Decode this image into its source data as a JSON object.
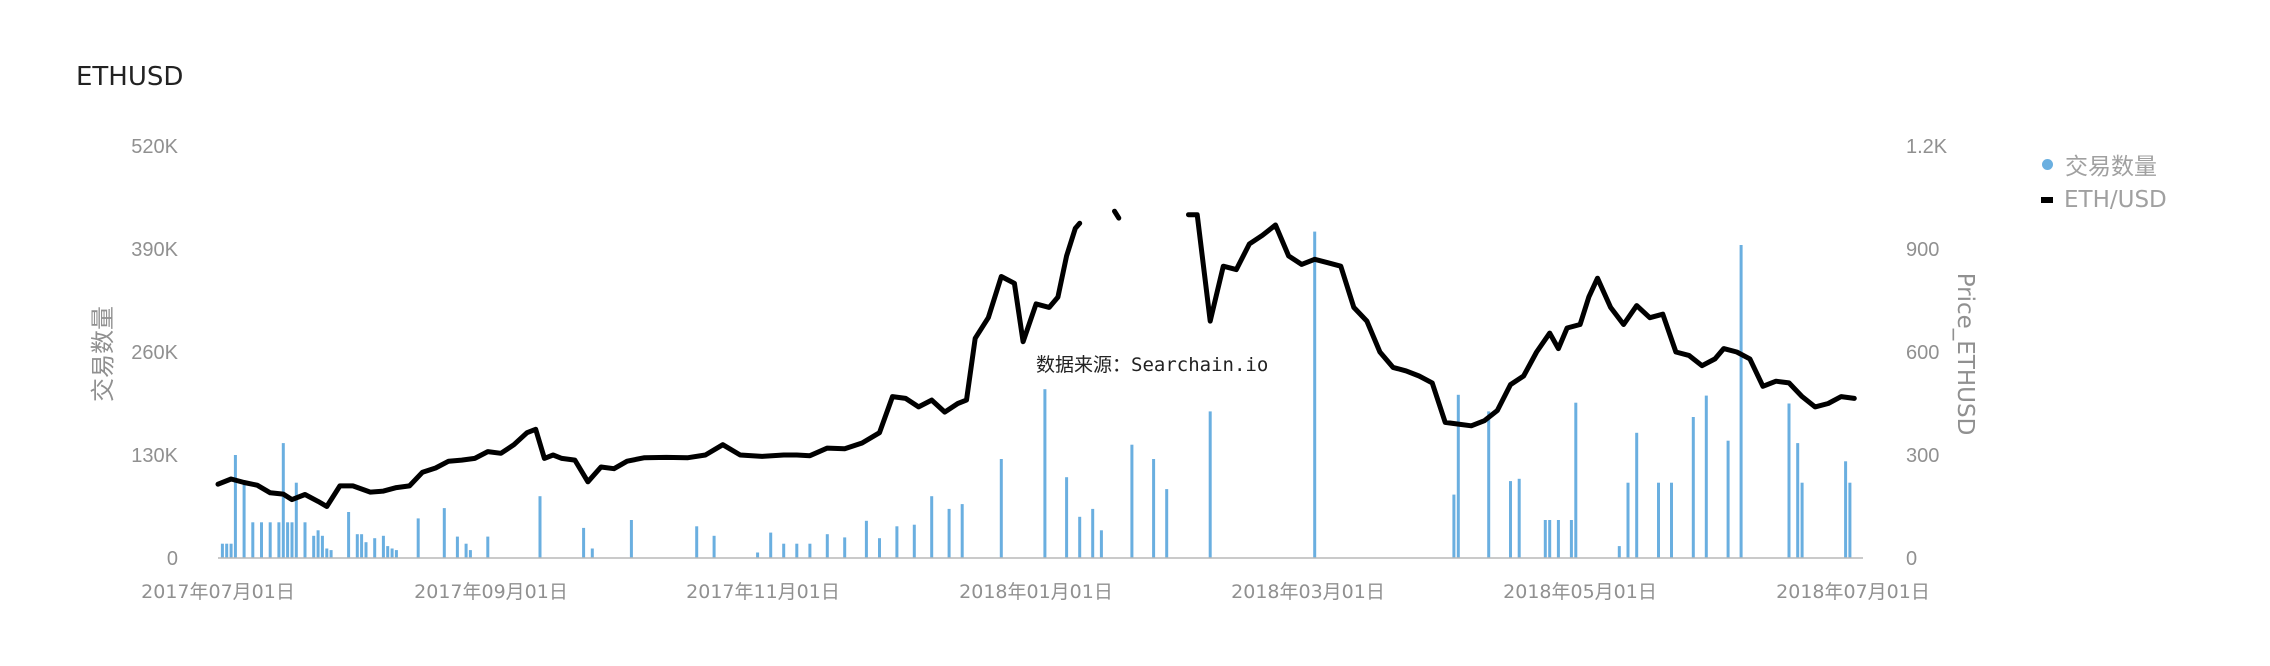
{
  "title": "ETHUSD",
  "source_note": "数据来源：Searchain.io",
  "legend": [
    {
      "label": "交易数量",
      "icon": "dot-icon",
      "color": "#6aafe0"
    },
    {
      "label": "ETH/USD",
      "icon": "line-icon",
      "color": "#000000"
    }
  ],
  "chart_data": {
    "type": "bar+line",
    "x_ticks": [
      "2017年07月01日",
      "2017年09月01日",
      "2017年11月01日",
      "2018年01月01日",
      "2018年03月01日",
      "2018年05月01日",
      "2018年07月01日"
    ],
    "left_axis": {
      "label": "交易数量",
      "ticks": [
        "0",
        "130K",
        "260K",
        "390K",
        "520K"
      ],
      "range": [
        0,
        520000
      ]
    },
    "right_axis": {
      "label": "Price_ETHUSD",
      "ticks": [
        "0",
        "300",
        "600",
        "900",
        "1.2K"
      ],
      "range": [
        0,
        1200
      ]
    },
    "x_range": [
      "2017-06-22",
      "2018-07-05"
    ],
    "bar_series": {
      "name": "交易数量",
      "color": "#6aafe0",
      "points": [
        [
          "2017-06-23",
          18000
        ],
        [
          "2017-06-24",
          18000
        ],
        [
          "2017-06-25",
          18000
        ],
        [
          "2017-06-26",
          130000
        ],
        [
          "2017-06-28",
          95000
        ],
        [
          "2017-06-30",
          45000
        ],
        [
          "2017-07-02",
          45000
        ],
        [
          "2017-07-04",
          45000
        ],
        [
          "2017-07-06",
          45000
        ],
        [
          "2017-07-07",
          145000
        ],
        [
          "2017-07-08",
          45000
        ],
        [
          "2017-07-09",
          45000
        ],
        [
          "2017-07-10",
          95000
        ],
        [
          "2017-07-12",
          45000
        ],
        [
          "2017-07-14",
          28000
        ],
        [
          "2017-07-15",
          35000
        ],
        [
          "2017-07-16",
          28000
        ],
        [
          "2017-07-17",
          12000
        ],
        [
          "2017-07-18",
          10000
        ],
        [
          "2017-07-22",
          58000
        ],
        [
          "2017-07-24",
          30000
        ],
        [
          "2017-07-25",
          30000
        ],
        [
          "2017-07-26",
          20000
        ],
        [
          "2017-07-28",
          25000
        ],
        [
          "2017-07-30",
          28000
        ],
        [
          "2017-07-31",
          15000
        ],
        [
          "2017-08-01",
          12000
        ],
        [
          "2017-08-02",
          10000
        ],
        [
          "2017-08-07",
          50000
        ],
        [
          "2017-08-13",
          63000
        ],
        [
          "2017-08-16",
          27000
        ],
        [
          "2017-08-18",
          18000
        ],
        [
          "2017-08-19",
          10000
        ],
        [
          "2017-08-23",
          27000
        ],
        [
          "2017-09-04",
          78000
        ],
        [
          "2017-09-14",
          38000
        ],
        [
          "2017-09-16",
          12000
        ],
        [
          "2017-09-25",
          48000
        ],
        [
          "2017-10-10",
          40000
        ],
        [
          "2017-10-14",
          28000
        ],
        [
          "2017-10-24",
          7000
        ],
        [
          "2017-10-27",
          32000
        ],
        [
          "2017-10-30",
          18000
        ],
        [
          "2017-11-02",
          18000
        ],
        [
          "2017-11-05",
          18000
        ],
        [
          "2017-11-09",
          30000
        ],
        [
          "2017-11-13",
          26000
        ],
        [
          "2017-11-18",
          47000
        ],
        [
          "2017-11-21",
          25000
        ],
        [
          "2017-11-25",
          40000
        ],
        [
          "2017-11-29",
          42000
        ],
        [
          "2017-12-03",
          78000
        ],
        [
          "2017-12-07",
          62000
        ],
        [
          "2017-12-10",
          68000
        ],
        [
          "2017-12-19",
          125000
        ],
        [
          "2017-12-29",
          213000
        ],
        [
          "2018-01-03",
          102000
        ],
        [
          "2018-01-06",
          52000
        ],
        [
          "2018-01-09",
          62000
        ],
        [
          "2018-01-11",
          35000
        ],
        [
          "2018-01-18",
          143000
        ],
        [
          "2018-01-23",
          125000
        ],
        [
          "2018-01-26",
          87000
        ],
        [
          "2018-02-05",
          185000
        ],
        [
          "2018-03-01",
          412000
        ],
        [
          "2018-04-02",
          80000
        ],
        [
          "2018-04-03",
          206000
        ],
        [
          "2018-04-10",
          185000
        ],
        [
          "2018-04-15",
          97000
        ],
        [
          "2018-04-17",
          100000
        ],
        [
          "2018-04-23",
          48000
        ],
        [
          "2018-04-24",
          48000
        ],
        [
          "2018-04-26",
          48000
        ],
        [
          "2018-04-29",
          48000
        ],
        [
          "2018-04-30",
          196000
        ],
        [
          "2018-05-10",
          15000
        ],
        [
          "2018-05-12",
          95000
        ],
        [
          "2018-05-14",
          158000
        ],
        [
          "2018-05-19",
          95000
        ],
        [
          "2018-05-22",
          95000
        ],
        [
          "2018-05-27",
          178000
        ],
        [
          "2018-05-30",
          205000
        ],
        [
          "2018-06-04",
          148000
        ],
        [
          "2018-06-07",
          395000
        ],
        [
          "2018-06-18",
          195000
        ],
        [
          "2018-06-20",
          145000
        ],
        [
          "2018-06-21",
          95000
        ],
        [
          "2018-07-01",
          122000
        ],
        [
          "2018-07-02",
          95000
        ]
      ]
    },
    "line_series": {
      "name": "ETH/USD",
      "color": "#000000",
      "segments": [
        [
          [
            "2017-06-22",
            215
          ],
          [
            "2017-06-25",
            230
          ],
          [
            "2017-06-28",
            220
          ],
          [
            "2017-07-01",
            212
          ],
          [
            "2017-07-04",
            190
          ],
          [
            "2017-07-07",
            186
          ],
          [
            "2017-07-09",
            170
          ],
          [
            "2017-07-12",
            185
          ],
          [
            "2017-07-15",
            165
          ],
          [
            "2017-07-17",
            150
          ],
          [
            "2017-07-20",
            210
          ],
          [
            "2017-07-23",
            210
          ],
          [
            "2017-07-27",
            192
          ],
          [
            "2017-07-30",
            195
          ],
          [
            "2017-08-02",
            205
          ],
          [
            "2017-08-05",
            210
          ],
          [
            "2017-08-08",
            250
          ],
          [
            "2017-08-11",
            262
          ],
          [
            "2017-08-14",
            282
          ],
          [
            "2017-08-17",
            285
          ],
          [
            "2017-08-20",
            290
          ],
          [
            "2017-08-23",
            310
          ],
          [
            "2017-08-26",
            305
          ],
          [
            "2017-08-29",
            330
          ],
          [
            "2017-09-01",
            365
          ],
          [
            "2017-09-03",
            375
          ],
          [
            "2017-09-05",
            290
          ],
          [
            "2017-09-07",
            300
          ],
          [
            "2017-09-09",
            290
          ],
          [
            "2017-09-12",
            285
          ],
          [
            "2017-09-15",
            222
          ],
          [
            "2017-09-18",
            265
          ],
          [
            "2017-09-21",
            260
          ],
          [
            "2017-09-24",
            282
          ],
          [
            "2017-09-28",
            292
          ],
          [
            "2017-10-03",
            293
          ],
          [
            "2017-10-08",
            292
          ],
          [
            "2017-10-12",
            300
          ],
          [
            "2017-10-16",
            330
          ],
          [
            "2017-10-20",
            300
          ],
          [
            "2017-10-25",
            296
          ],
          [
            "2017-10-30",
            300
          ],
          [
            "2017-11-02",
            300
          ],
          [
            "2017-11-05",
            298
          ],
          [
            "2017-11-09",
            320
          ],
          [
            "2017-11-13",
            318
          ],
          [
            "2017-11-17",
            335
          ],
          [
            "2017-11-21",
            365
          ],
          [
            "2017-11-24",
            470
          ],
          [
            "2017-11-27",
            465
          ],
          [
            "2017-11-30",
            440
          ],
          [
            "2017-12-03",
            460
          ],
          [
            "2017-12-06",
            425
          ],
          [
            "2017-12-09",
            450
          ],
          [
            "2017-12-11",
            460
          ],
          [
            "2017-12-13",
            640
          ],
          [
            "2017-12-16",
            700
          ],
          [
            "2017-12-19",
            820
          ],
          [
            "2017-12-22",
            800
          ],
          [
            "2017-12-24",
            630
          ],
          [
            "2017-12-27",
            740
          ],
          [
            "2017-12-30",
            730
          ],
          [
            "2018-01-01",
            760
          ],
          [
            "2018-01-03",
            880
          ],
          [
            "2018-01-05",
            960
          ],
          [
            "2018-01-06",
            975
          ]
        ],
        [
          [
            "2018-01-14",
            1010
          ],
          [
            "2018-01-15",
            990
          ]
        ],
        [
          [
            "2018-01-31",
            1000
          ],
          [
            "2018-02-02",
            1000
          ],
          [
            "2018-02-05",
            690
          ],
          [
            "2018-02-08",
            850
          ],
          [
            "2018-02-11",
            840
          ],
          [
            "2018-02-14",
            915
          ],
          [
            "2018-02-17",
            940
          ],
          [
            "2018-02-20",
            970
          ],
          [
            "2018-02-23",
            880
          ],
          [
            "2018-02-26",
            855
          ],
          [
            "2018-03-01",
            870
          ],
          [
            "2018-03-04",
            860
          ],
          [
            "2018-03-07",
            850
          ],
          [
            "2018-03-10",
            730
          ],
          [
            "2018-03-13",
            690
          ],
          [
            "2018-03-16",
            600
          ],
          [
            "2018-03-19",
            555
          ],
          [
            "2018-03-22",
            545
          ],
          [
            "2018-03-25",
            530
          ],
          [
            "2018-03-28",
            510
          ],
          [
            "2018-03-31",
            395
          ],
          [
            "2018-04-03",
            390
          ],
          [
            "2018-04-06",
            385
          ],
          [
            "2018-04-09",
            400
          ],
          [
            "2018-04-12",
            430
          ],
          [
            "2018-04-15",
            505
          ],
          [
            "2018-04-18",
            530
          ],
          [
            "2018-04-21",
            600
          ],
          [
            "2018-04-24",
            655
          ],
          [
            "2018-04-26",
            610
          ],
          [
            "2018-04-28",
            670
          ],
          [
            "2018-05-01",
            680
          ],
          [
            "2018-05-03",
            760
          ],
          [
            "2018-05-05",
            815
          ],
          [
            "2018-05-08",
            730
          ],
          [
            "2018-05-11",
            680
          ],
          [
            "2018-05-14",
            735
          ],
          [
            "2018-05-17",
            700
          ],
          [
            "2018-05-20",
            710
          ],
          [
            "2018-05-23",
            600
          ],
          [
            "2018-05-26",
            590
          ],
          [
            "2018-05-29",
            560
          ],
          [
            "2018-06-01",
            580
          ],
          [
            "2018-06-03",
            610
          ],
          [
            "2018-06-06",
            600
          ],
          [
            "2018-06-09",
            580
          ],
          [
            "2018-06-12",
            500
          ],
          [
            "2018-06-15",
            515
          ],
          [
            "2018-06-18",
            510
          ],
          [
            "2018-06-21",
            470
          ],
          [
            "2018-06-24",
            440
          ],
          [
            "2018-06-27",
            450
          ],
          [
            "2018-06-30",
            470
          ],
          [
            "2018-07-03",
            465
          ]
        ]
      ]
    }
  }
}
